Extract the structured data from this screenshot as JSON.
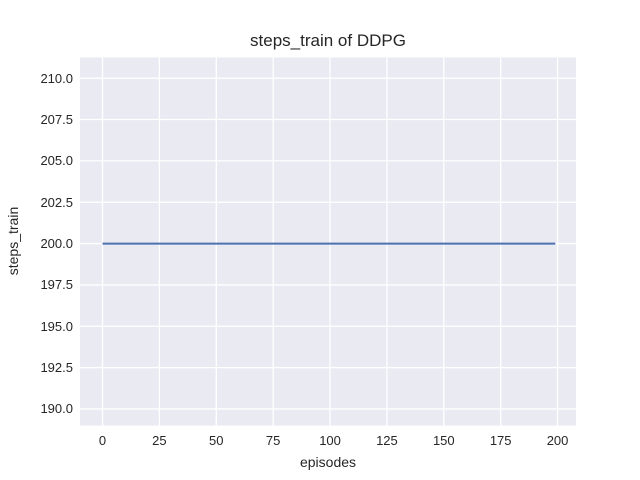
{
  "chart_data": {
    "type": "line",
    "title": "steps_train of DDPG",
    "xlabel": "episodes",
    "ylabel": "steps_train",
    "x_ticks": [
      0,
      25,
      50,
      75,
      100,
      125,
      150,
      175,
      200
    ],
    "x_tick_labels": [
      "0",
      "25",
      "50",
      "75",
      "100",
      "125",
      "150",
      "175",
      "200"
    ],
    "y_ticks": [
      190.0,
      192.5,
      195.0,
      197.5,
      200.0,
      202.5,
      205.0,
      207.5,
      210.0
    ],
    "y_tick_labels": [
      "190.0",
      "192.5",
      "195.0",
      "197.5",
      "200.0",
      "202.5",
      "205.0",
      "207.5",
      "210.0"
    ],
    "xlim": [
      -9.9,
      208.1
    ],
    "ylim": [
      189.0,
      211.25
    ],
    "grid": true,
    "legend_position": "none",
    "series": [
      {
        "name": "steps_train",
        "color": "#4c72b0",
        "x": [
          0,
          199
        ],
        "y": [
          200,
          200
        ]
      }
    ],
    "style": {
      "figure_bg": "#ffffff",
      "plot_bg": "#eaeaf2",
      "grid_color": "#ffffff",
      "text_color": "#262626",
      "line_width": 2,
      "grid_width": 1.3
    }
  }
}
